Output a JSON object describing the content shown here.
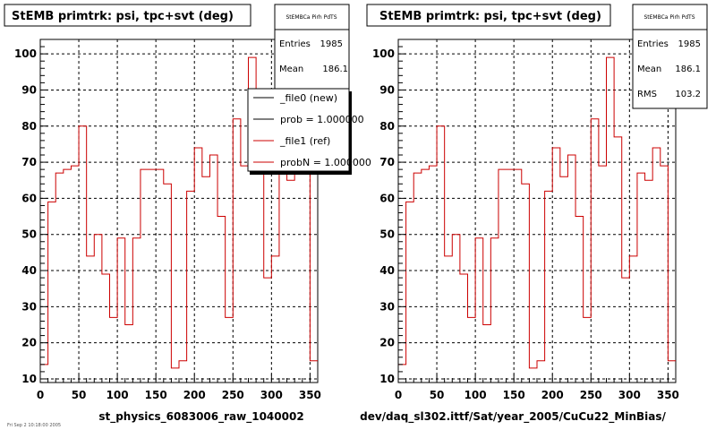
{
  "colors": {
    "background": "#ffffff",
    "ref_line": "#cc0000",
    "new_line": "#000000"
  },
  "chart_data": [
    {
      "type": "line",
      "title": "StEMB primtrk: psi, tpc+svt (deg)",
      "xlabel": "st_physics_6083006_raw_1040002",
      "ylabel": "",
      "xlim": [
        0,
        360
      ],
      "ylim": [
        9,
        104
      ],
      "xticks": [
        0,
        50,
        100,
        150,
        200,
        250,
        300,
        350
      ],
      "yticks": [
        10,
        20,
        30,
        40,
        50,
        60,
        70,
        80,
        90,
        100
      ],
      "grid": true,
      "bin_edges": [
        0,
        10,
        20,
        30,
        40,
        50,
        60,
        70,
        80,
        90,
        100,
        110,
        120,
        130,
        140,
        150,
        160,
        170,
        180,
        190,
        200,
        210,
        220,
        230,
        240,
        250,
        260,
        270,
        280,
        290,
        300,
        310,
        320,
        330,
        340,
        350,
        360
      ],
      "series": [
        {
          "name": "_file1 (ref)",
          "values": [
            14,
            59,
            67,
            68,
            69,
            80,
            44,
            50,
            39,
            27,
            49,
            25,
            49,
            68,
            68,
            68,
            64,
            13,
            15,
            62,
            74,
            66,
            72,
            55,
            27,
            82,
            69,
            99,
            77,
            38,
            44,
            67,
            65,
            74,
            69,
            15
          ]
        }
      ],
      "stats": {
        "header": "StEMBCa Pirh PdTS",
        "entries_label": "Entries",
        "entries": "1985",
        "mean_label": "Mean",
        "mean": "186.1"
      },
      "legend": {
        "placement": "top-right",
        "entries": [
          "_file0 (new)",
          "prob = 1.000000",
          "_file1 (ref)",
          "probN = 1.000000"
        ]
      },
      "footer": "Fri Sep 2 10:18:00 2005"
    },
    {
      "type": "line",
      "title": "StEMB primtrk: psi, tpc+svt (deg)",
      "xlabel": "dev/daq_sl302.ittf/Sat/year_2005/CuCu22_MinBias/",
      "ylabel": "",
      "xlim": [
        0,
        360
      ],
      "ylim": [
        9,
        104
      ],
      "xticks": [
        0,
        50,
        100,
        150,
        200,
        250,
        300,
        350
      ],
      "yticks": [
        10,
        20,
        30,
        40,
        50,
        60,
        70,
        80,
        90,
        100
      ],
      "grid": true,
      "bin_edges": [
        0,
        10,
        20,
        30,
        40,
        50,
        60,
        70,
        80,
        90,
        100,
        110,
        120,
        130,
        140,
        150,
        160,
        170,
        180,
        190,
        200,
        210,
        220,
        230,
        240,
        250,
        260,
        270,
        280,
        290,
        300,
        310,
        320,
        330,
        340,
        350,
        360
      ],
      "series": [
        {
          "name": "",
          "values": [
            14,
            59,
            67,
            68,
            69,
            80,
            44,
            50,
            39,
            27,
            49,
            25,
            49,
            68,
            68,
            68,
            64,
            13,
            15,
            62,
            74,
            66,
            72,
            55,
            27,
            82,
            69,
            99,
            77,
            38,
            44,
            67,
            65,
            74,
            69,
            15
          ]
        }
      ],
      "stats": {
        "header": "StEMBCa Pirh PdTS",
        "entries_label": "Entries",
        "entries": "1985",
        "mean_label": "Mean",
        "mean": "186.1",
        "rms_label": "RMS",
        "rms": "103.2"
      }
    }
  ]
}
